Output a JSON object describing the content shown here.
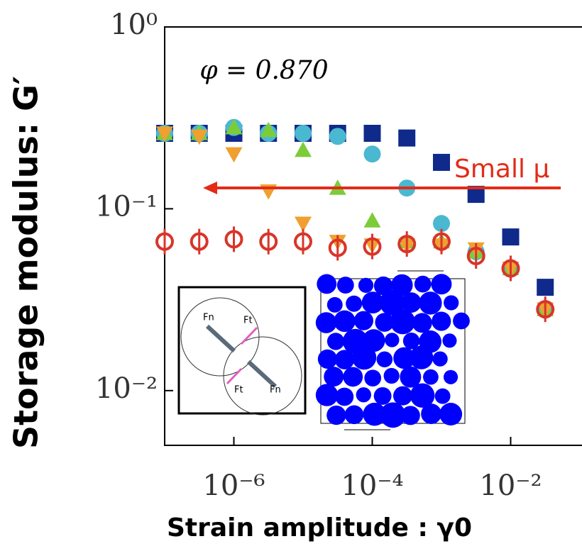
{
  "chart_data": {
    "type": "scatter",
    "y_label": "Storage modulus: G′",
    "x_label": "Strain amplitude : γ0",
    "annotations": [
      "φ = 0.870",
      "Small μ"
    ],
    "inset_labels": [
      "Fn",
      "Ft",
      "Ft",
      "Fn"
    ],
    "log_x": true,
    "log_y": true,
    "xlim": [
      1e-07,
      0.1
    ],
    "ylim": [
      0.005,
      1
    ],
    "xticks": [
      {
        "value": 1e-06,
        "label": "10⁻⁶"
      },
      {
        "value": 0.0001,
        "label": "10⁻⁴"
      },
      {
        "value": 0.01,
        "label": "10⁻²"
      }
    ],
    "yticks": [
      {
        "value": 0.01,
        "label": "10⁻²"
      },
      {
        "value": 0.1,
        "label": "10⁻¹"
      },
      {
        "value": 1,
        "label": "10⁰"
      }
    ],
    "x": [
      1e-07,
      3.16e-07,
      1e-06,
      3.16e-06,
      1e-05,
      3.16e-05,
      0.0001,
      0.000316,
      0.001,
      0.00316,
      0.01,
      0.0316
    ],
    "series": [
      {
        "color": "#0f2a8a",
        "marker": "square",
        "values": [
          0.26,
          0.26,
          0.26,
          0.26,
          0.26,
          0.26,
          0.26,
          0.245,
          0.18,
          0.12,
          0.07,
          0.037
        ]
      },
      {
        "color": "#4ab8d0",
        "marker": "circle",
        "values": [
          0.26,
          0.26,
          0.28,
          0.26,
          0.26,
          0.25,
          0.2,
          0.13,
          0.083,
          0.058,
          0.047,
          0.028
        ]
      },
      {
        "color": "#7ccc3a",
        "marker": "triangle-up",
        "values": [
          0.26,
          0.26,
          0.28,
          0.27,
          0.21,
          0.13,
          0.086,
          0.066,
          0.066,
          0.058,
          0.047,
          0.028
        ]
      },
      {
        "color": "#f0a030",
        "marker": "triangle-down",
        "values": [
          0.26,
          0.25,
          0.2,
          0.125,
          0.083,
          0.066,
          0.063,
          0.063,
          0.063,
          0.06,
          0.047,
          0.028
        ]
      },
      {
        "color": "#d8352a",
        "marker": "open-circle",
        "values": [
          0.066,
          0.066,
          0.068,
          0.066,
          0.066,
          0.061,
          0.062,
          0.064,
          0.066,
          0.055,
          0.047,
          0.028
        ]
      }
    ]
  }
}
